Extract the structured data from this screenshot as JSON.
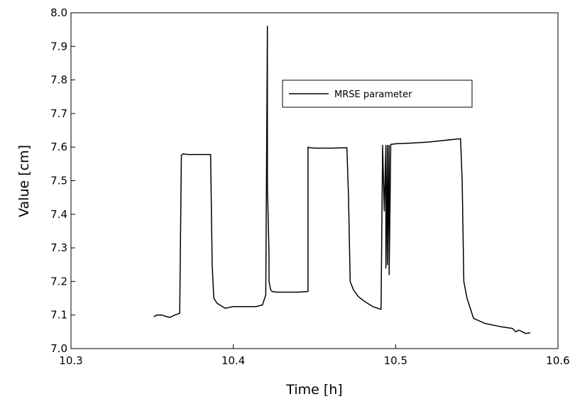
{
  "chart_data": {
    "type": "line",
    "title": "",
    "xlabel": "Time [h]",
    "ylabel": "Value [cm]",
    "xlim": [
      10.3,
      10.6
    ],
    "ylim": [
      7.0,
      8.0
    ],
    "xticks": [
      "10.3",
      "10.4",
      "10.5",
      "10.6"
    ],
    "yticks": [
      "7.0",
      "7.1",
      "7.2",
      "7.3",
      "7.4",
      "7.5",
      "7.6",
      "7.7",
      "7.8",
      "7.9",
      "8.0"
    ],
    "grid": false,
    "legend_position": "top-right",
    "series": [
      {
        "name": "MRSE parameter",
        "color": "#000000",
        "x": [
          10.351,
          10.353,
          10.356,
          10.359,
          10.361,
          10.364,
          10.367,
          10.368,
          10.369,
          10.372,
          10.378,
          10.384,
          10.386,
          10.387,
          10.388,
          10.39,
          10.395,
          10.4,
          10.408,
          10.414,
          10.418,
          10.42,
          10.421,
          10.421,
          10.422,
          10.422,
          10.423,
          10.424,
          10.427,
          10.433,
          10.44,
          10.446,
          10.446,
          10.447,
          10.45,
          10.46,
          10.47,
          10.471,
          10.472,
          10.474,
          10.477,
          10.481,
          10.486,
          10.491,
          10.492,
          10.492,
          10.493,
          10.494,
          10.494,
          10.495,
          10.495,
          10.496,
          10.496,
          10.497,
          10.497,
          10.5,
          10.51,
          10.52,
          10.53,
          10.54,
          10.541,
          10.542,
          10.544,
          10.548,
          10.555,
          10.565,
          10.572,
          10.574,
          10.576,
          10.58,
          10.583
        ],
        "y": [
          7.095,
          7.1,
          7.1,
          7.095,
          7.093,
          7.1,
          7.105,
          7.575,
          7.58,
          7.578,
          7.578,
          7.578,
          7.578,
          7.25,
          7.15,
          7.135,
          7.12,
          7.125,
          7.125,
          7.125,
          7.13,
          7.16,
          7.96,
          7.49,
          7.28,
          7.2,
          7.175,
          7.17,
          7.168,
          7.168,
          7.168,
          7.17,
          7.6,
          7.598,
          7.597,
          7.597,
          7.598,
          7.45,
          7.2,
          7.175,
          7.155,
          7.14,
          7.125,
          7.117,
          7.6,
          7.605,
          7.41,
          7.605,
          7.24,
          7.605,
          7.25,
          7.605,
          7.22,
          7.605,
          7.608,
          7.61,
          7.612,
          7.615,
          7.62,
          7.625,
          7.5,
          7.2,
          7.15,
          7.09,
          7.075,
          7.065,
          7.06,
          7.05,
          7.055,
          7.045,
          7.047
        ]
      }
    ]
  }
}
